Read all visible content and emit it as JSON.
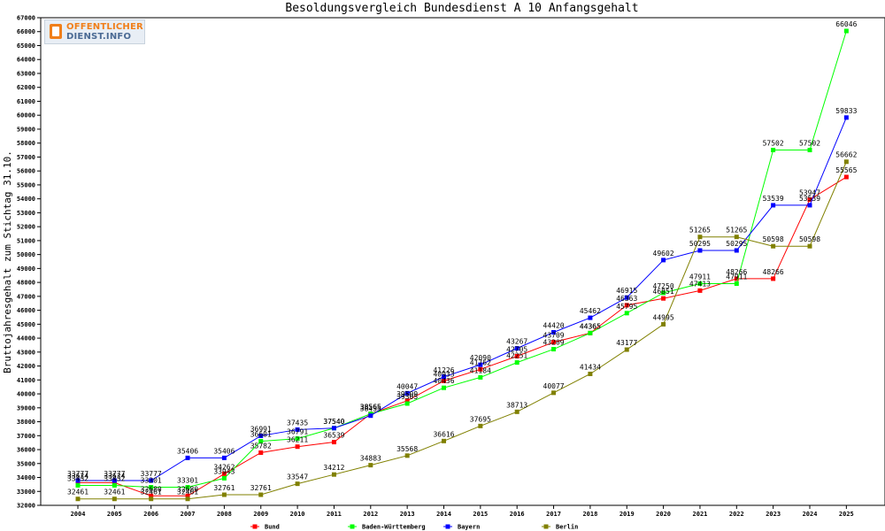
{
  "chart_data": {
    "type": "line",
    "title": "Besoldungsvergleich Bundesdienst A 10 Anfangsgehalt",
    "xlabel": "",
    "ylabel": "Bruttojahresgehalt zum Stichtag 31.10.",
    "ylim": [
      32000,
      67000
    ],
    "ytick_step": 1000,
    "grid": false,
    "legend_position": "bottom",
    "x": [
      "2004",
      "2005",
      "2006",
      "2007",
      "2008",
      "2009",
      "2010",
      "2011",
      "2012",
      "2013",
      "2014",
      "2015",
      "2016",
      "2017",
      "2018",
      "2019",
      "2020",
      "2021",
      "2022",
      "2023",
      "2024",
      "2025"
    ],
    "series": [
      {
        "name": "Bund",
        "color": "#ff0000",
        "values": [
          33624,
          33624,
          32680,
          32680,
          34262,
          35782,
          36211,
          36539,
          38565,
          39509,
          40933,
          41762,
          42705,
          43709,
          44365,
          46363,
          46851,
          47413,
          48266,
          48266,
          53947,
          55565
        ]
      },
      {
        "name": "Baden-Württemberg",
        "color": "#00ff00",
        "values": [
          33432,
          33432,
          33301,
          33301,
          33943,
          36601,
          36791,
          37540,
          38565,
          39305,
          40436,
          41184,
          42251,
          43209,
          44365,
          45795,
          47250,
          47911,
          47911,
          57502,
          57502,
          66046
        ]
      },
      {
        "name": "Bayern",
        "color": "#0000ff",
        "values": [
          33777,
          33777,
          33777,
          35406,
          35406,
          36991,
          37435,
          37540,
          38435,
          40047,
          41226,
          42090,
          43267,
          44420,
          45462,
          46915,
          49602,
          50295,
          50295,
          53539,
          53539,
          59833
        ]
      },
      {
        "name": "Berlin",
        "color": "#808000",
        "values": [
          32461,
          32461,
          32461,
          32461,
          32761,
          32761,
          33547,
          34212,
          34883,
          35568,
          36616,
          37695,
          38713,
          40077,
          41434,
          43177,
          44995,
          51265,
          51265,
          50598,
          50598,
          56662
        ]
      }
    ]
  },
  "logo": {
    "line1": "OFFENTLICHER",
    "line2": "DIENST.INFO"
  }
}
